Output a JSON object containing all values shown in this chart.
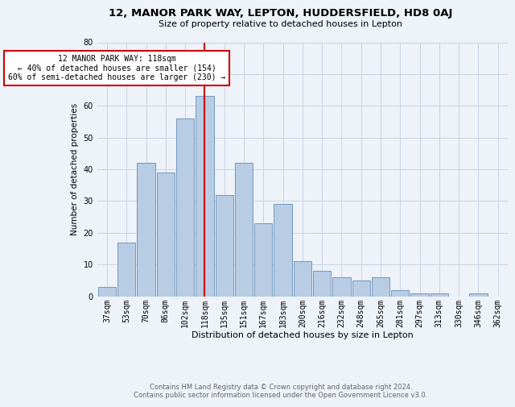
{
  "title1": "12, MANOR PARK WAY, LEPTON, HUDDERSFIELD, HD8 0AJ",
  "title2": "Size of property relative to detached houses in Lepton",
  "xlabel": "Distribution of detached houses by size in Lepton",
  "ylabel": "Number of detached properties",
  "footnote": "Contains HM Land Registry data © Crown copyright and database right 2024.\nContains public sector information licensed under the Open Government Licence v3.0.",
  "bar_labels": [
    "37sqm",
    "53sqm",
    "70sqm",
    "86sqm",
    "102sqm",
    "118sqm",
    "135sqm",
    "151sqm",
    "167sqm",
    "183sqm",
    "200sqm",
    "216sqm",
    "232sqm",
    "248sqm",
    "265sqm",
    "281sqm",
    "297sqm",
    "313sqm",
    "330sqm",
    "346sqm",
    "362sqm"
  ],
  "bar_values": [
    3,
    17,
    42,
    39,
    56,
    63,
    32,
    42,
    23,
    29,
    11,
    8,
    6,
    5,
    6,
    2,
    1,
    1,
    0,
    1,
    0
  ],
  "bar_color": "#b8cce4",
  "bar_edge_color": "#7398c0",
  "grid_color": "#c8d4e3",
  "vline_x": 5,
  "vline_color": "#cc0000",
  "annotation_text": "12 MANOR PARK WAY: 118sqm\n← 40% of detached houses are smaller (154)\n60% of semi-detached houses are larger (230) →",
  "annotation_box_color": "#ffffff",
  "annotation_box_edge": "#cc0000",
  "ylim": [
    0,
    80
  ],
  "yticks": [
    0,
    10,
    20,
    30,
    40,
    50,
    60,
    70,
    80
  ],
  "background_color": "#eef2f9",
  "title1_fontsize": 9.5,
  "title2_fontsize": 8.0,
  "xlabel_fontsize": 8.0,
  "ylabel_fontsize": 7.5,
  "tick_fontsize": 7.0,
  "annot_fontsize": 7.0,
  "footnote_fontsize": 6.0,
  "footnote_color": "#666666"
}
